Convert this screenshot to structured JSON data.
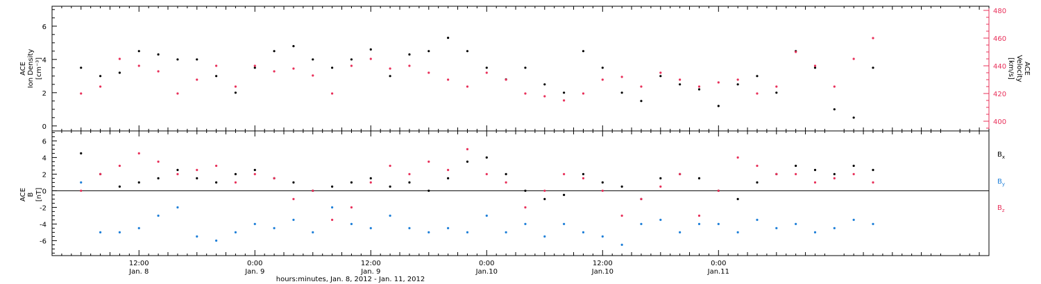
{
  "chart_data": [
    {
      "type": "scatter",
      "panel": "top",
      "left_axis": {
        "label_lines": [
          "ACE",
          "Ion Density",
          "[cm⁻³]"
        ],
        "ylim": [
          -0.3,
          7.2
        ],
        "ticks": [
          0,
          2,
          4,
          6
        ],
        "color": "#000000"
      },
      "right_axis": {
        "label_lines": [
          "ACE",
          "Velocity",
          "[km/s]"
        ],
        "ylim": [
          393,
          483
        ],
        "ticks": [
          400,
          420,
          440,
          460,
          480
        ],
        "color": "#e8305a"
      },
      "series": [
        {
          "axis": "left",
          "color": "#000000",
          "x": [
            0,
            2,
            4,
            6,
            8,
            10,
            12,
            14,
            16,
            18,
            20,
            22,
            24,
            26,
            28,
            30,
            32,
            34,
            36,
            38,
            40,
            42,
            44,
            46,
            48,
            50,
            52,
            54,
            56,
            58,
            60,
            62,
            64,
            66,
            68,
            70,
            72,
            74,
            76,
            78,
            80,
            82
          ],
          "values": [
            3.5,
            3.0,
            3.2,
            4.5,
            4.3,
            4.0,
            4.0,
            3.0,
            2.0,
            3.5,
            4.5,
            4.8,
            4.0,
            3.5,
            4.0,
            4.6,
            3.0,
            4.3,
            4.5,
            5.3,
            4.5,
            3.5,
            2.8,
            3.5,
            2.5,
            2.0,
            4.5,
            3.5,
            2.0,
            1.5,
            3.0,
            2.5,
            2.2,
            1.2,
            2.5,
            3.0,
            2.0,
            4.5,
            3.5,
            1.0,
            0.5,
            3.5
          ]
        },
        {
          "axis": "right",
          "color": "#e8305a",
          "x": [
            0,
            2,
            4,
            6,
            8,
            10,
            12,
            14,
            16,
            18,
            20,
            22,
            24,
            26,
            28,
            30,
            32,
            34,
            36,
            38,
            40,
            42,
            44,
            46,
            48,
            50,
            52,
            54,
            56,
            58,
            60,
            62,
            64,
            66,
            68,
            70,
            72,
            74,
            76,
            78,
            80,
            82
          ],
          "values": [
            420,
            425,
            445,
            440,
            436,
            420,
            430,
            440,
            425,
            440,
            436,
            438,
            433,
            420,
            440,
            445,
            438,
            440,
            435,
            430,
            425,
            435,
            430,
            420,
            418,
            415,
            420,
            430,
            432,
            425,
            435,
            430,
            425,
            428,
            430,
            420,
            425,
            450,
            440,
            425,
            445,
            460
          ]
        }
      ]
    },
    {
      "type": "scatter",
      "panel": "bottom",
      "left_axis": {
        "label_lines": [
          "ACE",
          "B",
          "[nT]"
        ],
        "ylim": [
          -7.8,
          7.2
        ],
        "ticks": [
          -6,
          -4,
          -2,
          0,
          2,
          4,
          6
        ],
        "color": "#000000"
      },
      "legend": [
        {
          "base": "B",
          "sub": "x",
          "color": "#000000"
        },
        {
          "base": "B",
          "sub": "y",
          "color": "#1e7fd8"
        },
        {
          "base": "B",
          "sub": "z",
          "color": "#e8305a"
        }
      ],
      "series": [
        {
          "name": "Bx",
          "color": "#000000",
          "x": [
            0,
            2,
            4,
            6,
            8,
            10,
            12,
            14,
            16,
            18,
            20,
            22,
            24,
            26,
            28,
            30,
            32,
            34,
            36,
            38,
            40,
            42,
            44,
            46,
            48,
            50,
            52,
            54,
            56,
            58,
            60,
            62,
            64,
            66,
            68,
            70,
            72,
            74,
            76,
            78,
            80,
            82
          ],
          "values": [
            4.5,
            2.0,
            0.5,
            1.0,
            1.5,
            2.5,
            1.5,
            1.0,
            2.0,
            2.5,
            1.5,
            1.0,
            0.0,
            0.5,
            1.0,
            1.5,
            0.5,
            1.0,
            0.0,
            1.5,
            3.5,
            4.0,
            2.0,
            0.0,
            -1.0,
            -0.5,
            2.0,
            1.0,
            0.5,
            -1.0,
            1.5,
            2.0,
            1.5,
            0.0,
            -1.0,
            1.0,
            2.0,
            3.0,
            2.5,
            2.0,
            3.0,
            2.5
          ]
        },
        {
          "name": "By",
          "color": "#1e7fd8",
          "x": [
            0,
            2,
            4,
            6,
            8,
            10,
            12,
            14,
            16,
            18,
            20,
            22,
            24,
            26,
            28,
            30,
            32,
            34,
            36,
            38,
            40,
            42,
            44,
            46,
            48,
            50,
            52,
            54,
            56,
            58,
            60,
            62,
            64,
            66,
            68,
            70,
            72,
            74,
            76,
            78,
            80,
            82
          ],
          "values": [
            1.0,
            -5.0,
            -5.0,
            -4.5,
            -3.0,
            -2.0,
            -5.5,
            -6.0,
            -5.0,
            -4.0,
            -4.5,
            -3.5,
            -5.0,
            -2.0,
            -4.0,
            -4.5,
            -3.0,
            -4.5,
            -5.0,
            -4.5,
            -5.0,
            -3.0,
            -5.0,
            -4.0,
            -5.5,
            -4.0,
            -5.0,
            -5.5,
            -6.5,
            -4.0,
            -3.5,
            -5.0,
            -4.0,
            -4.0,
            -5.0,
            -3.5,
            -4.5,
            -4.0,
            -5.0,
            -4.5,
            -3.5,
            -4.0
          ]
        },
        {
          "name": "Bz",
          "color": "#e8305a",
          "x": [
            0,
            2,
            4,
            6,
            8,
            10,
            12,
            14,
            16,
            18,
            20,
            22,
            24,
            26,
            28,
            30,
            32,
            34,
            36,
            38,
            40,
            42,
            44,
            46,
            48,
            50,
            52,
            54,
            56,
            58,
            60,
            62,
            64,
            66,
            68,
            70,
            72,
            74,
            76,
            78,
            80,
            82
          ],
          "values": [
            0.0,
            2.0,
            3.0,
            4.5,
            3.5,
            2.0,
            2.5,
            3.0,
            1.0,
            2.0,
            1.5,
            -1.0,
            0.0,
            -3.5,
            -2.0,
            1.0,
            3.0,
            2.0,
            3.5,
            2.5,
            5.0,
            2.0,
            1.0,
            -2.0,
            0.0,
            2.0,
            1.5,
            0.0,
            -3.0,
            -1.0,
            0.5,
            2.0,
            -3.0,
            0.0,
            4.0,
            3.0,
            2.0,
            2.0,
            1.0,
            1.5,
            2.0,
            1.0
          ]
        }
      ]
    }
  ],
  "time_axis": {
    "xlim": [
      -3,
      94
    ],
    "ticks": [
      {
        "t": 6,
        "line1": "12:00",
        "line2": "Jan. 8"
      },
      {
        "t": 18,
        "line1": "0:00",
        "line2": "Jan. 9"
      },
      {
        "t": 30,
        "line1": "12:00",
        "line2": "Jan. 9"
      },
      {
        "t": 42,
        "line1": "0:00",
        "line2": "Jan.10"
      },
      {
        "t": 54,
        "line1": "12:00",
        "line2": "Jan.10"
      },
      {
        "t": 66,
        "line1": "0:00",
        "line2": "Jan.11"
      }
    ],
    "xlabel": "hours:minutes, Jan.  8, 2012 - Jan. 11, 2012"
  }
}
